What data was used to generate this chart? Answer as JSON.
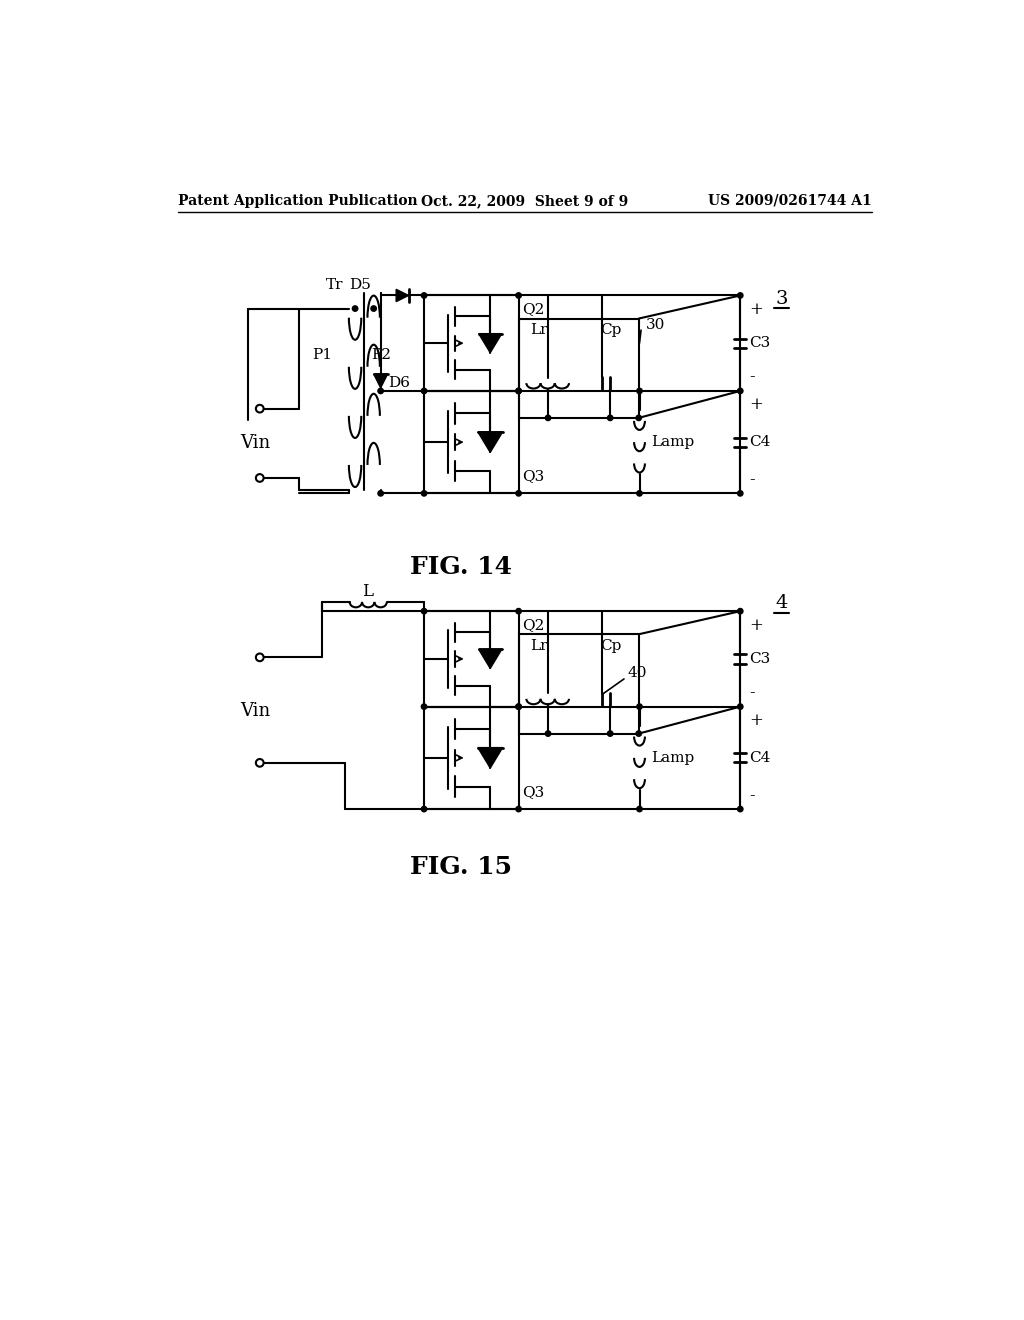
{
  "bg_color": "#ffffff",
  "header_left": "Patent Application Publication",
  "header_mid": "Oct. 22, 2009  Sheet 9 of 9",
  "header_right": "US 2009/0261744 A1",
  "fig14_label": "FIG. 14",
  "fig15_label": "FIG. 15"
}
